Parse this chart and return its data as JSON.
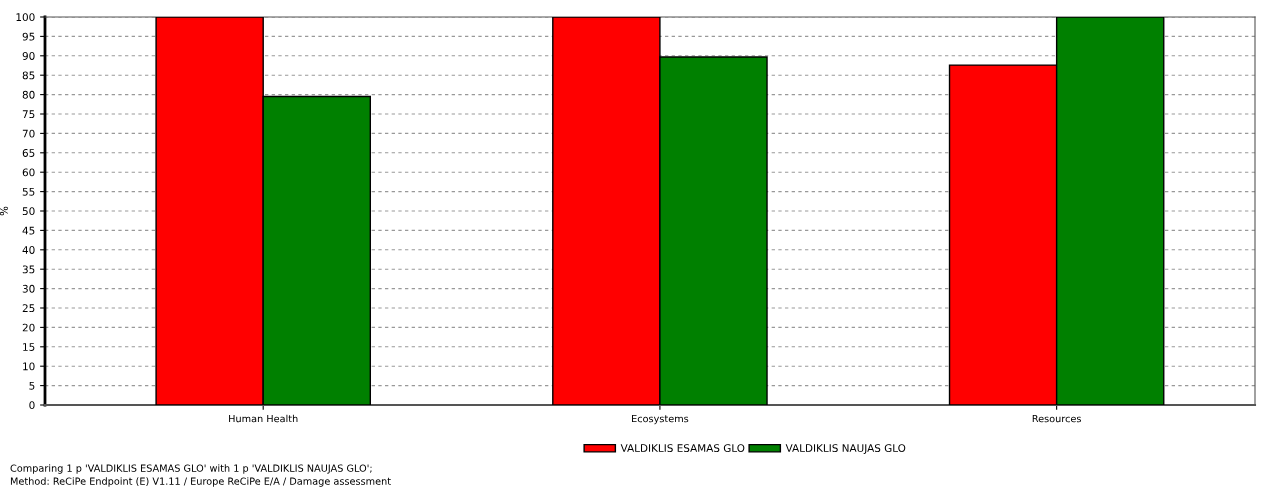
{
  "chart_data": {
    "type": "bar",
    "ylabel": "%",
    "categories": [
      "Human Health",
      "Ecosystems",
      "Resources"
    ],
    "series": [
      {
        "name": "VALDIKLIS ESAMAS GLO",
        "color": "#ff0000",
        "values": [
          100,
          100,
          87.6
        ]
      },
      {
        "name": "VALDIKLIS NAUJAS GLO",
        "color": "#008000",
        "values": [
          79.5,
          89.7,
          100
        ]
      }
    ],
    "ylim": [
      0,
      100
    ],
    "yticks": [
      0,
      5,
      10,
      15,
      20,
      25,
      30,
      35,
      40,
      45,
      50,
      55,
      60,
      65,
      70,
      75,
      80,
      85,
      90,
      95,
      100
    ],
    "grid": "y",
    "legend": "bottom",
    "annotations": [
      "Comparing 1 p 'VALDIKLIS ESAMAS GLO' with 1 p 'VALDIKLIS NAUJAS GLO';",
      "Method: ReCiPe Endpoint (E) V1.11 / Europe ReCiPe E/A / Damage assessment"
    ]
  }
}
